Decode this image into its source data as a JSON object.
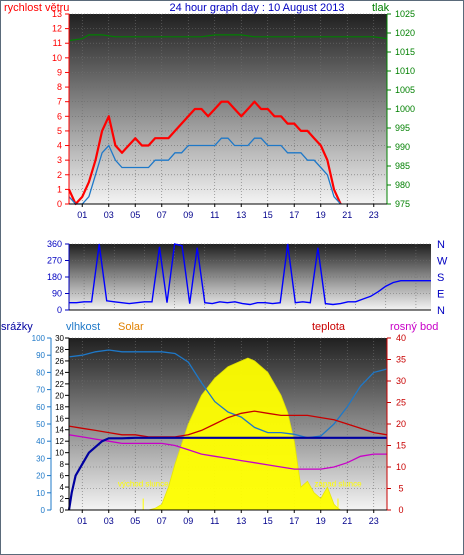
{
  "header": {
    "wind_title": "rychlost větru",
    "graph_title": "24 hour graph day : 10 August 2013",
    "pressure_title": "tlak"
  },
  "colors": {
    "wind": "#ff0000",
    "wind_avg": "#1e78c8",
    "pressure": "#008000",
    "direction": "#0000ff",
    "rain": "#0000a0",
    "humidity": "#1e78c8",
    "solar": "#ffff00",
    "temperature": "#c80000",
    "dewpoint": "#c800c8"
  },
  "chart_data": [
    {
      "type": "line",
      "title": "24 hour graph day : 10 August 2013",
      "x_ticks": [
        "01",
        "03",
        "05",
        "07",
        "09",
        "11",
        "13",
        "15",
        "17",
        "19",
        "21",
        "23"
      ],
      "y_left_label": "rychlost větru",
      "y_left_range": [
        0,
        13
      ],
      "y_left_ticks": [
        "0",
        "1",
        "2",
        "3",
        "4",
        "5",
        "6",
        "7",
        "8",
        "9",
        "10",
        "11",
        "12",
        "13"
      ],
      "y_right_label": "tlak",
      "y_right_range": [
        975,
        1025
      ],
      "y_right_ticks": [
        "975",
        "980",
        "985",
        "990",
        "995",
        "1000",
        "1005",
        "1010",
        "1015",
        "1020",
        "1025"
      ],
      "series": [
        {
          "key": "gust",
          "axis": "left",
          "x": [
            0,
            0.5,
            1,
            1.5,
            2,
            2.5,
            3,
            3.5,
            4,
            4.5,
            5,
            5.5,
            6,
            6.5,
            7,
            7.5,
            8,
            8.5,
            9,
            9.5,
            10,
            10.5,
            11,
            11.5,
            12,
            12.5,
            13,
            13.5,
            14,
            14.5,
            15,
            15.5,
            16,
            16.5,
            17,
            17.5,
            18,
            18.5,
            19,
            19.5,
            20,
            20.5
          ],
          "y": [
            1,
            0,
            0.5,
            1.5,
            3,
            5,
            6,
            4,
            3.5,
            4,
            4.5,
            4,
            4,
            4.5,
            4.5,
            4.5,
            5,
            5.5,
            6,
            6.5,
            6.5,
            6,
            6.5,
            7,
            7,
            6.5,
            6,
            6.5,
            7,
            6.5,
            6.5,
            6,
            6,
            5.5,
            5.5,
            5,
            5,
            4.5,
            4,
            3,
            1,
            0
          ]
        },
        {
          "key": "average",
          "axis": "left",
          "x": [
            0,
            0.5,
            1,
            1.5,
            2,
            2.5,
            3,
            3.5,
            4,
            4.5,
            5,
            5.5,
            6,
            6.5,
            7,
            7.5,
            8,
            8.5,
            9,
            9.5,
            10,
            10.5,
            11,
            11.5,
            12,
            12.5,
            13,
            13.5,
            14,
            14.5,
            15,
            15.5,
            16,
            16.5,
            17,
            17.5,
            18,
            18.5,
            19,
            19.5,
            20,
            20.5
          ],
          "y": [
            0.5,
            0,
            0,
            0.5,
            2,
            3.5,
            4,
            3,
            2.5,
            2.5,
            2.5,
            2.5,
            2.5,
            3,
            3,
            3,
            3.5,
            3.5,
            4,
            4,
            4,
            4,
            4,
            4.5,
            4.5,
            4,
            4,
            4,
            4.5,
            4.5,
            4,
            4,
            4,
            3.5,
            3.5,
            3.5,
            3,
            3,
            2.5,
            2,
            0.5,
            0
          ]
        },
        {
          "key": "pressure",
          "axis": "right",
          "x": [
            0,
            1,
            1.5,
            2.5,
            3.5,
            5,
            6,
            7,
            8,
            9,
            10,
            11,
            12,
            13,
            14,
            15,
            16,
            17,
            18,
            19,
            20,
            21,
            22,
            23,
            24
          ],
          "y": [
            1018,
            1018.5,
            1019.5,
            1019.5,
            1019,
            1019,
            1019,
            1019,
            1019,
            1019,
            1019,
            1019.5,
            1019.5,
            1019.5,
            1019,
            1019,
            1019,
            1019,
            1019,
            1019,
            1019,
            1019,
            1019,
            1019,
            1018.5
          ]
        }
      ]
    },
    {
      "type": "line",
      "x_ticks": [],
      "y_left_range": [
        0,
        360
      ],
      "y_left_ticks": [
        "0",
        "90",
        "180",
        "270",
        "360"
      ],
      "y_right_ticks": [
        "N",
        "W",
        "S",
        "E",
        "N"
      ],
      "series": [
        {
          "key": "direction",
          "x": [
            0,
            0.5,
            1,
            1.5,
            2,
            2.5,
            3,
            3.5,
            4,
            4.5,
            5,
            5.5,
            6,
            6.5,
            7,
            7.5,
            8,
            8.5,
            9,
            9.5,
            10,
            10.5,
            11,
            11.5,
            12,
            12.5,
            13,
            13.5,
            14,
            14.5,
            15,
            15.5,
            16,
            16.5,
            17,
            17.5,
            18,
            18.5,
            19,
            19.5,
            20,
            20.5,
            21,
            21.5,
            22,
            22.5,
            23,
            23.5,
            24
          ],
          "y": [
            40,
            40,
            45,
            45,
            360,
            50,
            45,
            40,
            35,
            40,
            45,
            45,
            345,
            40,
            360,
            350,
            35,
            340,
            40,
            35,
            45,
            40,
            45,
            35,
            30,
            40,
            40,
            35,
            40,
            360,
            40,
            45,
            40,
            340,
            35,
            30,
            35,
            45,
            45,
            60,
            75,
            100,
            130,
            150,
            160,
            160,
            160,
            160,
            160
          ]
        }
      ]
    },
    {
      "type": "area",
      "x_ticks": [
        "01",
        "03",
        "05",
        "07",
        "09",
        "11",
        "13",
        "15",
        "17",
        "19",
        "21",
        "23"
      ],
      "y_left_label_1": "srážky",
      "y_left_label_2": "vlhkost",
      "y_left_label_3": "Solar",
      "y_right_label_1": "teplota",
      "y_right_label_2": "rosný bod",
      "humidity_range": [
        0,
        100
      ],
      "humidity_ticks": [
        "0",
        "10",
        "20",
        "30",
        "40",
        "50",
        "60",
        "70",
        "80",
        "90",
        "100"
      ],
      "rain_range": [
        0,
        30
      ],
      "rain_ticks": [
        "0",
        "2",
        "4",
        "6",
        "8",
        "10",
        "12",
        "14",
        "16",
        "18",
        "20",
        "22",
        "24",
        "26",
        "28",
        "30"
      ],
      "temp_range": [
        0,
        40
      ],
      "temp_ticks": [
        "0",
        "5",
        "10",
        "15",
        "20",
        "25",
        "30",
        "35",
        "40"
      ],
      "annotations": [
        {
          "text": "východ slunce",
          "x": 5.6
        },
        {
          "text": "západ slunce",
          "x": 20.3
        }
      ],
      "series": [
        {
          "key": "solar",
          "axis": "rain",
          "x": [
            0,
            6,
            6.5,
            7,
            7.5,
            8,
            9,
            10,
            11,
            12,
            13,
            13.5,
            14,
            15,
            16,
            16.5,
            17,
            17.5,
            18,
            18.5,
            19,
            19.5,
            20,
            20.3,
            20.5,
            24
          ],
          "y": [
            0,
            0,
            0.3,
            1,
            4,
            8,
            15,
            20,
            23,
            25,
            26,
            26.5,
            26,
            24,
            20,
            17,
            12,
            4,
            5,
            3,
            2,
            4,
            1,
            0.3,
            0,
            0
          ]
        },
        {
          "key": "humidity",
          "axis": "humidity",
          "x": [
            0,
            1,
            2,
            3,
            4,
            5,
            6,
            7,
            8,
            9,
            10,
            11,
            12,
            13,
            14,
            15,
            16,
            17,
            18,
            19,
            20,
            21,
            22,
            23,
            24
          ],
          "y": [
            89,
            90,
            92,
            93,
            92,
            92,
            92,
            92,
            91,
            86,
            74,
            63,
            57,
            54,
            48,
            45,
            45,
            44,
            42,
            43,
            50,
            60,
            72,
            80,
            82
          ]
        },
        {
          "key": "temperature",
          "axis": "temp",
          "x": [
            0,
            1,
            2,
            3,
            4,
            5,
            6,
            7,
            8,
            9,
            10,
            11,
            12,
            13,
            14,
            15,
            16,
            17,
            18,
            19,
            20,
            21,
            22,
            23,
            24
          ],
          "y": [
            19.5,
            19,
            18.5,
            18,
            17.5,
            17.5,
            17,
            17,
            17,
            17.5,
            18.5,
            20,
            21.5,
            22.5,
            23,
            22.5,
            22,
            22,
            22,
            21.5,
            21,
            20,
            19,
            18,
            17.5
          ]
        },
        {
          "key": "dewpoint",
          "axis": "temp",
          "x": [
            0,
            1,
            2,
            3,
            4,
            5,
            6,
            7,
            8,
            9,
            10,
            11,
            12,
            13,
            14,
            15,
            16,
            17,
            18,
            19,
            20,
            21,
            22,
            23,
            24
          ],
          "y": [
            17.5,
            17,
            16.5,
            16,
            15.5,
            15.5,
            15.5,
            15.5,
            15,
            14,
            13,
            12.5,
            12,
            11.5,
            11,
            10.5,
            10,
            9.5,
            9.5,
            9.5,
            10,
            11,
            12.5,
            13,
            13
          ]
        },
        {
          "key": "rain",
          "axis": "rain",
          "x": [
            0,
            0.2,
            0.5,
            1,
            1.5,
            2,
            2.5,
            3,
            4,
            5,
            24
          ],
          "y": [
            0,
            3,
            6,
            8,
            10,
            11,
            12,
            12.5,
            12.5,
            12.6,
            12.6
          ]
        }
      ]
    }
  ]
}
